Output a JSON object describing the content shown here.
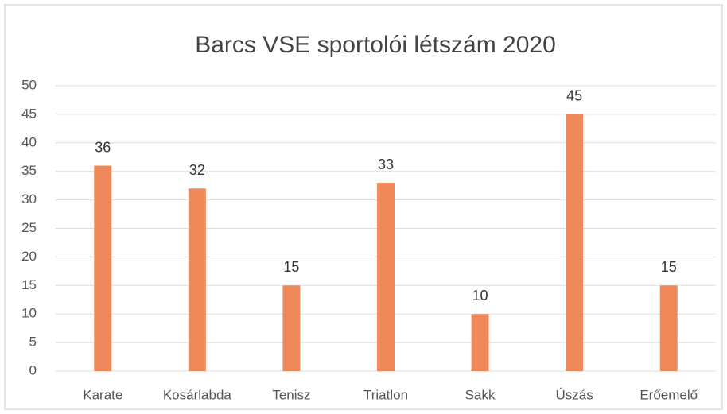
{
  "chart_data": {
    "type": "bar",
    "title": "Barcs VSE sportolói létszám 2020",
    "categories": [
      "Karate",
      "Kosárlabda",
      "Tenisz",
      "Triatlon",
      "Sakk",
      "Úszás",
      "Erőemelő"
    ],
    "values": [
      36,
      32,
      15,
      33,
      10,
      45,
      15
    ],
    "color": "#f0895a",
    "ylim": [
      0,
      50
    ],
    "yticks": [
      0,
      5,
      10,
      15,
      20,
      25,
      30,
      35,
      40,
      45,
      50
    ],
    "grid": true
  }
}
